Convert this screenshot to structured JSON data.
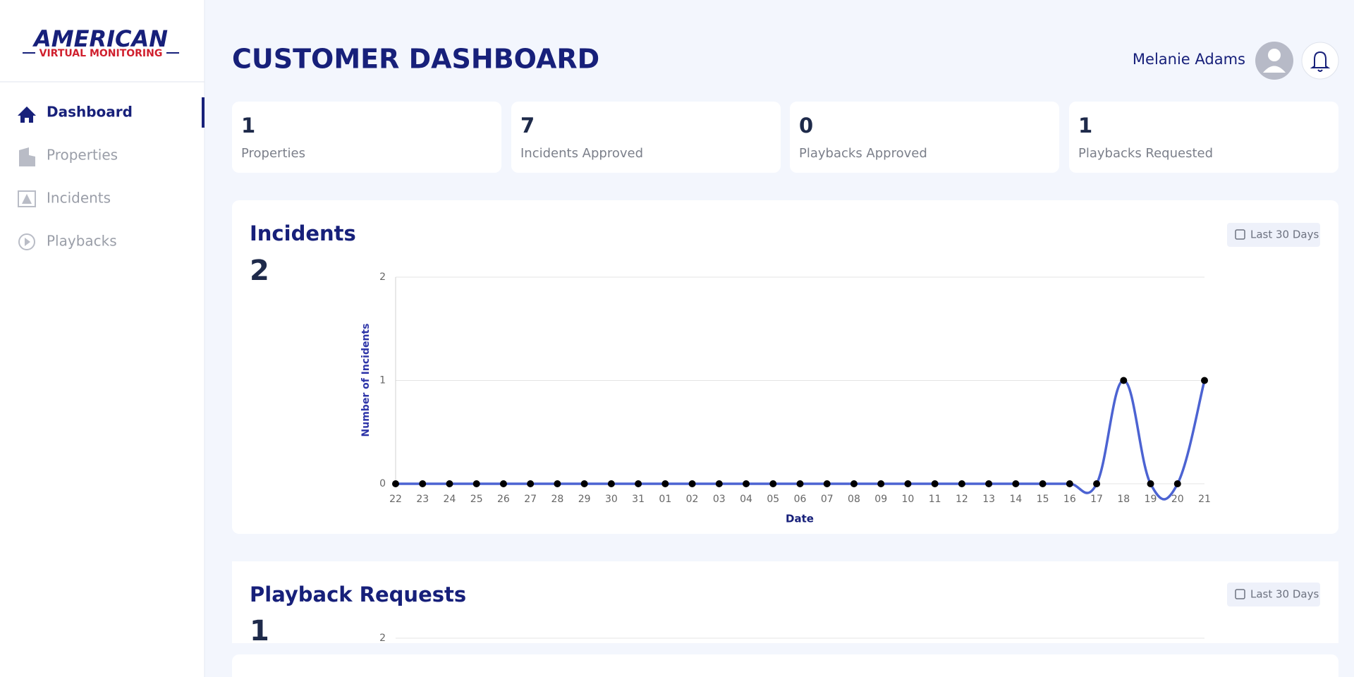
{
  "sidebar": {
    "logo": {
      "top": "AMERICAN",
      "bottom": "VIRTUAL MONITORING"
    },
    "nav": [
      "Dashboard",
      "Properties",
      "Incidents",
      "Playbacks"
    ]
  },
  "header": {
    "title": "CUSTOMER DASHBOARD",
    "user": "Melanie Adams"
  },
  "stats": [
    {
      "value": "1",
      "label": "Properties"
    },
    {
      "value": "7",
      "label": "Incidents Approved"
    },
    {
      "value": "0",
      "label": "Playbacks Approved"
    },
    {
      "value": "1",
      "label": "Playbacks Requested"
    }
  ],
  "incidents": {
    "title": "Incidents",
    "count": "2",
    "range": "Last 30 Days",
    "chart": {
      "type": "line",
      "x_label": "Date",
      "y_label": "Number of Incidents",
      "categories": [
        "22",
        "23",
        "24",
        "25",
        "26",
        "27",
        "28",
        "29",
        "30",
        "31",
        "01",
        "02",
        "03",
        "04",
        "05",
        "06",
        "07",
        "08",
        "09",
        "10",
        "11",
        "12",
        "13",
        "14",
        "15",
        "16",
        "17",
        "18",
        "19",
        "20",
        "21"
      ],
      "values": [
        0,
        0,
        0,
        0,
        0,
        0,
        0,
        0,
        0,
        0,
        0,
        0,
        0,
        0,
        0,
        0,
        0,
        0,
        0,
        0,
        0,
        0,
        0,
        0,
        0,
        0,
        0,
        1,
        0,
        0,
        1
      ],
      "color": "#4c63d2",
      "point_color": "#000000",
      "ylim": [
        0,
        2
      ],
      "yticks": [
        0,
        1,
        2
      ],
      "grid": true
    }
  },
  "playbacks": {
    "title": "Playback Requests",
    "count": "1",
    "range": "Last 30 Days",
    "chart": {
      "type": "line",
      "ylim": [
        0,
        2
      ],
      "yticks": [
        2
      ],
      "grid": true
    }
  }
}
